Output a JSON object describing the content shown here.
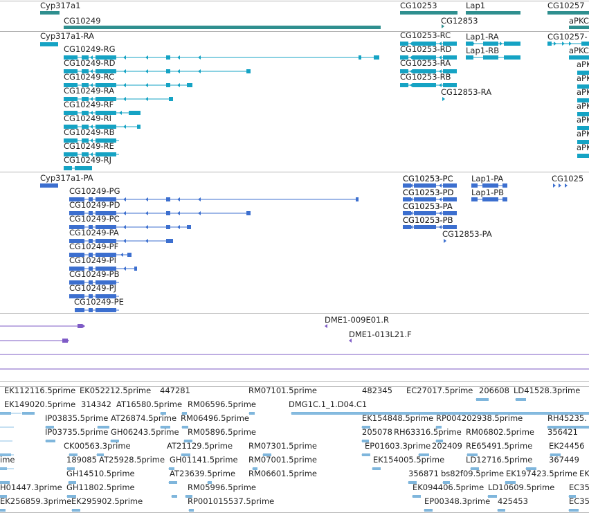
{
  "colors": {
    "gene": "#2f8f8f",
    "flybase_transcript": "#15a3c4",
    "refseq_transcript": "#3c6fcf",
    "aligned": "#7e5bc6",
    "est": "#7fb6dc",
    "est_line": "#8ec0e4",
    "divider": "#b4b4b4",
    "label": "#222222"
  },
  "tracks": {
    "genes": {
      "labels": [
        "Cyp317a1",
        "CG10249",
        "CG10253",
        "CG12853",
        "Lap1",
        "CG10257",
        "aPKC"
      ]
    },
    "flybase_transcripts": {
      "labels": [
        "Cyp317a1-RA",
        "CG10249-RG",
        "CG10249-RD",
        "CG10249-RC",
        "CG10249-RA",
        "CG10249-RF",
        "CG10249-RI",
        "CG10249-RB",
        "CG10249-RE",
        "CG10249-RJ",
        "CG10253-RC",
        "CG10253-RD",
        "CG10253-RA",
        "CG10253-RB",
        "CG12853-RA",
        "Lap1-RA",
        "Lap1-RB",
        "CG10257-",
        "aPKC",
        "aPK",
        "aPK",
        "aPK",
        "aPK",
        "aPK",
        "aPK",
        "aPK"
      ]
    },
    "refseq_transcripts": {
      "labels": [
        "Cyp317a1-PA",
        "CG10249-PG",
        "CG10249-PD",
        "CG10249-PC",
        "CG10249-PA",
        "CG10249-PF",
        "CG10249-PI",
        "CG10249-PB",
        "CG10249-PJ",
        "CG10249-PE",
        "CG10253-PC",
        "CG10253-PD",
        "CG10253-PA",
        "CG10253-PB",
        "CG12853-PA",
        "Lap1-PA",
        "Lap1-PB",
        "CG1025"
      ]
    },
    "aligned_clones": {
      "labels": [
        "DME1-009E01.R",
        "DME1-013L21.F"
      ]
    },
    "est_alignments": {
      "labels": [
        "EK112116.5prime",
        "EK052212.5prime",
        "447281",
        "RM07101.5prime",
        "482345",
        "EC27017.5prime",
        "206608",
        "LD41528.3prime",
        "EK149020.5prime",
        "314342",
        "AT16580.5prime",
        "RM06596.5prime",
        "DMG1C.1_1.D04.C1",
        "IP03835.5prime",
        "AT26874.5prime",
        "RM06496.5prime",
        "EK154848.5prime",
        "RP004202938.5prime",
        "RH45235.",
        "IP03735.5prime",
        "GH06243.5prime",
        "RM05896.5prime",
        "205078",
        "RH63316.5prime",
        "RM06802.5prime",
        "356421",
        "CK00563.3prime",
        "AT21129.5prime",
        "RM07301.5prime",
        "EP01603.3prime",
        "202409",
        "RE65491.5prime",
        "EK24456",
        "ime",
        "189085",
        "AT25928.5prime",
        "GH01141.5prime",
        "RM07001.5prime",
        "EK154005.5prime",
        "LD12716.5prime",
        "367449",
        "GH14510.5prime",
        "AT23639.5prime",
        "RM06601.5prime",
        "356871",
        "bs82f09.5prime",
        "EK197423.5prime",
        "EK",
        "H01447.3prime",
        "GH11802.5prime",
        "RM05996.5prime",
        "EK094406.5prime",
        "LD10609.5prime",
        "EC35",
        "EK256859.3prime",
        "EK295902.5prime",
        "RP001015537.5prime",
        "EP00348.3prime",
        "425453",
        "EC35"
      ]
    }
  }
}
